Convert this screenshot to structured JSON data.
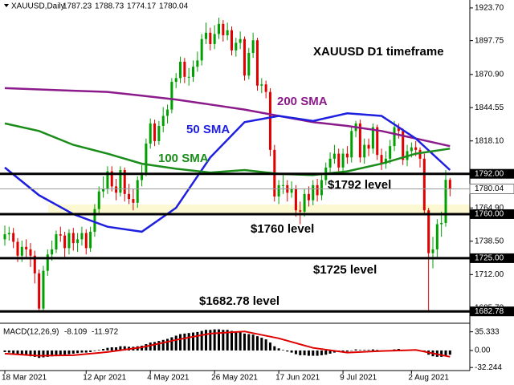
{
  "chart_data": [
    {
      "type": "candlestick",
      "title": "XAUUSD D1 timeframe",
      "symbol": "XAUUSD,Daily",
      "up_color": "#00a000",
      "down_color": "#e00000",
      "ohlc": [
        [
          1740,
          1751,
          1735,
          1744
        ],
        [
          1744,
          1750,
          1739,
          1745
        ],
        [
          1745,
          1749,
          1733,
          1738
        ],
        [
          1738,
          1741,
          1722,
          1727
        ],
        [
          1727,
          1739,
          1722,
          1734
        ],
        [
          1734,
          1740,
          1726,
          1732
        ],
        [
          1732,
          1737,
          1718,
          1727
        ],
        [
          1727,
          1731,
          1705,
          1713
        ],
        [
          1713,
          1716,
          1682,
          1685
        ],
        [
          1685,
          1719,
          1683,
          1715
        ],
        [
          1715,
          1732,
          1711,
          1728
        ],
        [
          1728,
          1739,
          1723,
          1732
        ],
        [
          1732,
          1747,
          1729,
          1744
        ],
        [
          1744,
          1750,
          1738,
          1743
        ],
        [
          1743,
          1746,
          1726,
          1733
        ],
        [
          1733,
          1748,
          1728,
          1745
        ],
        [
          1745,
          1749,
          1731,
          1737
        ],
        [
          1737,
          1745,
          1730,
          1740
        ],
        [
          1740,
          1750,
          1735,
          1745
        ],
        [
          1745,
          1748,
          1728,
          1733
        ],
        [
          1733,
          1750,
          1730,
          1746
        ],
        [
          1746,
          1768,
          1742,
          1764
        ],
        [
          1764,
          1782,
          1760,
          1778
        ],
        [
          1778,
          1790,
          1773,
          1780
        ],
        [
          1780,
          1798,
          1776,
          1794
        ],
        [
          1794,
          1798,
          1778,
          1782
        ],
        [
          1782,
          1788,
          1771,
          1777
        ],
        [
          1777,
          1798,
          1774,
          1795
        ],
        [
          1795,
          1797,
          1770,
          1776
        ],
        [
          1776,
          1784,
          1768,
          1772
        ],
        [
          1772,
          1780,
          1763,
          1769
        ],
        [
          1769,
          1790,
          1765,
          1787
        ],
        [
          1787,
          1799,
          1782,
          1793
        ],
        [
          1793,
          1820,
          1790,
          1816
        ],
        [
          1816,
          1836,
          1812,
          1832
        ],
        [
          1832,
          1835,
          1814,
          1818
        ],
        [
          1818,
          1834,
          1815,
          1830
        ],
        [
          1830,
          1845,
          1825,
          1838
        ],
        [
          1838,
          1847,
          1832,
          1843
        ],
        [
          1843,
          1868,
          1840,
          1865
        ],
        [
          1865,
          1872,
          1860,
          1868
        ],
        [
          1868,
          1885,
          1864,
          1881
        ],
        [
          1881,
          1884,
          1864,
          1869
        ],
        [
          1869,
          1876,
          1862,
          1869
        ],
        [
          1869,
          1882,
          1865,
          1877
        ],
        [
          1877,
          1889,
          1873,
          1882
        ],
        [
          1882,
          1903,
          1878,
          1899
        ],
        [
          1899,
          1912,
          1895,
          1904
        ],
        [
          1904,
          1908,
          1890,
          1895
        ],
        [
          1895,
          1910,
          1891,
          1903
        ],
        [
          1903,
          1916,
          1899,
          1911
        ],
        [
          1911,
          1914,
          1897,
          1902
        ],
        [
          1902,
          1912,
          1898,
          1906
        ],
        [
          1906,
          1909,
          1886,
          1890
        ],
        [
          1890,
          1900,
          1885,
          1896
        ],
        [
          1896,
          1905,
          1891,
          1899
        ],
        [
          1899,
          1901,
          1866,
          1870
        ],
        [
          1870,
          1892,
          1867,
          1888
        ],
        [
          1888,
          1904,
          1884,
          1898
        ],
        [
          1898,
          1900,
          1858,
          1862
        ],
        [
          1862,
          1868,
          1856,
          1863
        ],
        [
          1863,
          1866,
          1852,
          1857
        ],
        [
          1857,
          1860,
          1806,
          1811
        ],
        [
          1811,
          1815,
          1770,
          1774
        ],
        [
          1774,
          1787,
          1768,
          1783
        ],
        [
          1783,
          1791,
          1776,
          1783
        ],
        [
          1783,
          1787,
          1770,
          1777
        ],
        [
          1777,
          1786,
          1773,
          1780
        ],
        [
          1780,
          1783,
          1758,
          1763
        ],
        [
          1763,
          1770,
          1752,
          1762
        ],
        [
          1762,
          1780,
          1758,
          1776
        ],
        [
          1776,
          1782,
          1766,
          1771
        ],
        [
          1771,
          1787,
          1767,
          1783
        ],
        [
          1783,
          1788,
          1770,
          1775
        ],
        [
          1775,
          1791,
          1771,
          1787
        ],
        [
          1787,
          1801,
          1783,
          1797
        ],
        [
          1797,
          1809,
          1793,
          1804
        ],
        [
          1804,
          1815,
          1800,
          1808
        ],
        [
          1808,
          1812,
          1793,
          1797
        ],
        [
          1797,
          1812,
          1793,
          1808
        ],
        [
          1808,
          1814,
          1800,
          1805
        ],
        [
          1805,
          1830,
          1801,
          1826
        ],
        [
          1826,
          1834,
          1821,
          1832
        ],
        [
          1832,
          1835,
          1801,
          1805
        ],
        [
          1805,
          1820,
          1800,
          1815
        ],
        [
          1815,
          1820,
          1806,
          1812
        ],
        [
          1812,
          1832,
          1808,
          1829
        ],
        [
          1829,
          1831,
          1803,
          1807
        ],
        [
          1807,
          1812,
          1795,
          1800
        ],
        [
          1800,
          1810,
          1796,
          1804
        ],
        [
          1804,
          1819,
          1800,
          1814
        ],
        [
          1814,
          1834,
          1810,
          1829
        ],
        [
          1829,
          1832,
          1820,
          1826
        ],
        [
          1826,
          1828,
          1799,
          1803
        ],
        [
          1803,
          1815,
          1798,
          1810
        ],
        [
          1810,
          1817,
          1805,
          1813
        ],
        [
          1813,
          1818,
          1806,
          1811
        ],
        [
          1811,
          1813,
          1797,
          1804
        ],
        [
          1804,
          1808,
          1759,
          1763
        ],
        [
          1763,
          1765,
          1682.78,
          1729
        ],
        [
          1729,
          1742,
          1717,
          1732
        ],
        [
          1732,
          1756,
          1726,
          1752
        ],
        [
          1752,
          1762,
          1742,
          1753
        ],
        [
          1753,
          1795,
          1750,
          1787.23
        ],
        [
          1787.23,
          1788.73,
          1774.17,
          1780.04
        ]
      ],
      "ylim": [
        1674,
        1930
      ],
      "yticks": [
        {
          "value": 1923.7,
          "label": "1923.70"
        },
        {
          "value": 1897.75,
          "label": "1897.75"
        },
        {
          "value": 1870.9,
          "label": "1870.90"
        },
        {
          "value": 1844.55,
          "label": "1844.55"
        },
        {
          "value": 1818.1,
          "label": "1818.10"
        },
        {
          "value": 1764.9,
          "label": "1764.90"
        },
        {
          "value": 1738.5,
          "label": "1738.50"
        },
        {
          "value": 1712,
          "label": "1712.00"
        },
        {
          "value": 1685.7,
          "label": "1685.70"
        }
      ],
      "xticks": [
        {
          "value": 0,
          "label": "18 Mar 2021"
        },
        {
          "value": 19,
          "label": "12 Apr 2021"
        },
        {
          "value": 34,
          "label": "4 May 2021"
        },
        {
          "value": 49,
          "label": "26 May 2021"
        },
        {
          "value": 64,
          "label": "17 Jun 2021"
        },
        {
          "value": 79,
          "label": "9 Jul 2021"
        },
        {
          "value": 95,
          "label": "2 Aug 2021"
        }
      ],
      "lines": [
        {
          "name": "200 SMA",
          "color": "#8b1a8b",
          "x": [
            0,
            8,
            16,
            24,
            32,
            40,
            48,
            56,
            64,
            72,
            80,
            88,
            96,
            104
          ],
          "values": [
            1860,
            1859,
            1858,
            1857,
            1854,
            1851,
            1847,
            1843,
            1838,
            1833,
            1830,
            1826,
            1820,
            1814
          ]
        },
        {
          "name": "50 SMA",
          "color": "#1f1fe0",
          "x": [
            0,
            8,
            16,
            24,
            32,
            40,
            48,
            56,
            64,
            72,
            80,
            88,
            96,
            104
          ],
          "values": [
            1797,
            1775,
            1760,
            1750,
            1746,
            1765,
            1805,
            1833,
            1838,
            1834,
            1840,
            1838,
            1820,
            1795
          ]
        },
        {
          "name": "100 SMA",
          "color": "#1a8c1a",
          "x": [
            0,
            8,
            16,
            24,
            32,
            40,
            48,
            56,
            64,
            72,
            80,
            88,
            96,
            104
          ],
          "values": [
            1832,
            1826,
            1815,
            1808,
            1800,
            1796,
            1793,
            1795,
            1792,
            1791,
            1794,
            1800,
            1808,
            1812
          ]
        }
      ],
      "levels": [
        {
          "value": 1792,
          "label": "1792.00",
          "text": "$1792 level"
        },
        {
          "value": 1760,
          "label": "1760.00",
          "text": "$1760 level"
        },
        {
          "value": 1725,
          "label": "1725.00",
          "text": "$1725 level"
        },
        {
          "value": 1682.78,
          "label": "1682.78",
          "text": "$1682.78 level"
        }
      ]
    },
    {
      "type": "macd",
      "title": "MACD(12,26,9)",
      "histogram_color": "#000000",
      "histogram": [
        -3,
        -4,
        -6,
        -8,
        -9,
        -10,
        -11,
        -12,
        -14,
        -13,
        -12,
        -11,
        -9,
        -8,
        -8,
        -7,
        -6,
        -5,
        -4,
        -4,
        -3,
        -1,
        1,
        3,
        5,
        6,
        6,
        8,
        8,
        7,
        7,
        8,
        9,
        12,
        15,
        16,
        18,
        20,
        22,
        25,
        28,
        31,
        32,
        33,
        34,
        35,
        37,
        39,
        39,
        40,
        40,
        39,
        39,
        37,
        36,
        35,
        32,
        31,
        30,
        27,
        24,
        21,
        15,
        8,
        4,
        1,
        -2,
        -4,
        -7,
        -9,
        -9,
        -10,
        -10,
        -10,
        -9,
        -8,
        -6,
        -4,
        -3,
        -2,
        -2,
        0,
        2,
        1,
        1,
        1,
        2,
        1,
        0,
        0,
        0,
        2,
        3,
        1,
        1,
        1,
        1,
        0,
        -3,
        -8,
        -11,
        -12,
        -12,
        -10,
        -8.109
      ],
      "signal": {
        "color": "#e00000",
        "x": [
          0,
          8,
          16,
          24,
          32,
          40,
          48,
          56,
          64,
          72,
          80,
          88,
          96,
          104
        ],
        "values": [
          -6,
          -10,
          -9,
          -3,
          6,
          20,
          32,
          36,
          23,
          5,
          -4,
          -1,
          1,
          -11.972
        ]
      },
      "ylim": [
        -38,
        50
      ],
      "yticks": [
        35.333,
        {
          "value": 0,
          "label": "0.00"
        },
        -32.244
      ]
    }
  ]
}
